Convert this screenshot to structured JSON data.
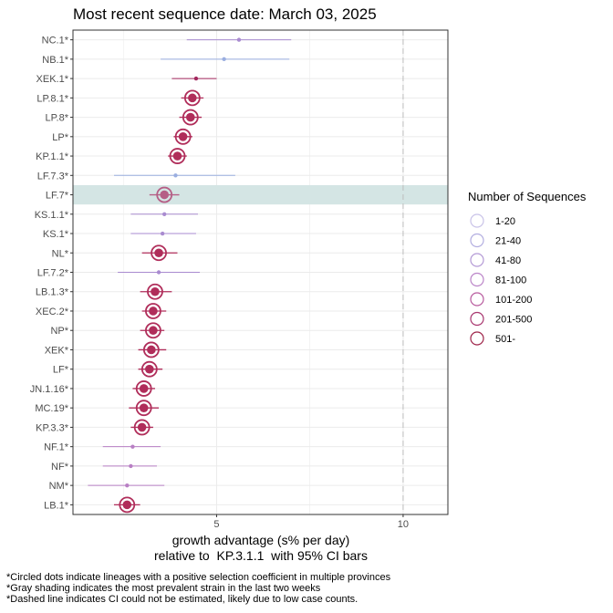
{
  "chart_data": {
    "type": "scatter",
    "title": "Most recent sequence date: March 03, 2025",
    "xlabel_line1": "growth advantage (s% per day)",
    "xlabel_line2": "relative to  KP.3.1.1  with 95% CI bars",
    "x_ticks": [
      5,
      10
    ],
    "xlim": [
      1.15,
      11.2
    ],
    "dashed_line_x": 10,
    "highlighted_lineage": "LF.7*",
    "lineages": [
      {
        "name": "NC.1*",
        "est": 5.6,
        "lo": 4.2,
        "hi": 7.0,
        "circled": false,
        "color": "#a98bd0"
      },
      {
        "name": "NB.1*",
        "est": 5.2,
        "lo": 3.5,
        "hi": 6.95,
        "circled": false,
        "color": "#9aaee0"
      },
      {
        "name": "XEK.1*",
        "est": 4.45,
        "lo": 3.8,
        "hi": 5.0,
        "circled": false,
        "color": "#a3285e"
      },
      {
        "name": "LP.8.1*",
        "est": 4.35,
        "lo": 4.05,
        "hi": 4.65,
        "circled": true,
        "color": "#b02d5a"
      },
      {
        "name": "LP.8*",
        "est": 4.3,
        "lo": 4.0,
        "hi": 4.6,
        "circled": true,
        "color": "#b02d5a"
      },
      {
        "name": "LP*",
        "est": 4.1,
        "lo": 3.85,
        "hi": 4.35,
        "circled": true,
        "color": "#b02d5a"
      },
      {
        "name": "KP.1.1*",
        "est": 3.95,
        "lo": 3.7,
        "hi": 4.2,
        "circled": true,
        "color": "#b02d5a"
      },
      {
        "name": "LF.7.3*",
        "est": 3.9,
        "lo": 2.25,
        "hi": 5.5,
        "circled": false,
        "color": "#9aaee0"
      },
      {
        "name": "LF.7*",
        "est": 3.6,
        "lo": 3.2,
        "hi": 4.0,
        "circled": true,
        "color": "#b55f86"
      },
      {
        "name": "KS.1.1*",
        "est": 3.6,
        "lo": 2.7,
        "hi": 4.5,
        "circled": false,
        "color": "#a98bd0"
      },
      {
        "name": "KS.1*",
        "est": 3.55,
        "lo": 2.7,
        "hi": 4.45,
        "circled": false,
        "color": "#a98bd0"
      },
      {
        "name": "NL*",
        "est": 3.45,
        "lo": 3.0,
        "hi": 3.95,
        "circled": true,
        "color": "#b02d5a"
      },
      {
        "name": "LF.7.2*",
        "est": 3.45,
        "lo": 2.35,
        "hi": 4.55,
        "circled": false,
        "color": "#a98bd0"
      },
      {
        "name": "LB.1.3*",
        "est": 3.35,
        "lo": 2.95,
        "hi": 3.8,
        "circled": true,
        "color": "#b02d5a"
      },
      {
        "name": "XEC.2*",
        "est": 3.3,
        "lo": 3.0,
        "hi": 3.65,
        "circled": true,
        "color": "#b02d5a"
      },
      {
        "name": "NP*",
        "est": 3.3,
        "lo": 2.95,
        "hi": 3.6,
        "circled": true,
        "color": "#b02d5a"
      },
      {
        "name": "XEK*",
        "est": 3.25,
        "lo": 2.9,
        "hi": 3.65,
        "circled": true,
        "color": "#b02d5a"
      },
      {
        "name": "LF*",
        "est": 3.2,
        "lo": 2.9,
        "hi": 3.55,
        "circled": true,
        "color": "#b02d5a"
      },
      {
        "name": "JN.1.16*",
        "est": 3.05,
        "lo": 2.75,
        "hi": 3.35,
        "circled": true,
        "color": "#b02d5a"
      },
      {
        "name": "MC.19*",
        "est": 3.05,
        "lo": 2.65,
        "hi": 3.45,
        "circled": true,
        "color": "#b02d5a"
      },
      {
        "name": "KP.3.3*",
        "est": 3.0,
        "lo": 2.7,
        "hi": 3.3,
        "circled": true,
        "color": "#b02d5a"
      },
      {
        "name": "NF.1*",
        "est": 2.75,
        "lo": 1.95,
        "hi": 3.5,
        "circled": false,
        "color": "#b87fc4"
      },
      {
        "name": "NF*",
        "est": 2.7,
        "lo": 1.95,
        "hi": 3.4,
        "circled": false,
        "color": "#b87fc4"
      },
      {
        "name": "NM*",
        "est": 2.6,
        "lo": 1.55,
        "hi": 3.6,
        "circled": false,
        "color": "#b87fc4"
      },
      {
        "name": "LB.1*",
        "est": 2.6,
        "lo": 2.25,
        "hi": 2.95,
        "circled": true,
        "color": "#b02d5a"
      }
    ],
    "legend": {
      "title": "Number of Sequences",
      "placement": "right",
      "entries": [
        {
          "label": "1-20",
          "color": "#c9c3e8"
        },
        {
          "label": "21-40",
          "color": "#b3aee0"
        },
        {
          "label": "41-80",
          "color": "#b49ad6"
        },
        {
          "label": "81-100",
          "color": "#bb85c8"
        },
        {
          "label": "101-200",
          "color": "#b85b9e"
        },
        {
          "label": "201-500",
          "color": "#a8366f"
        },
        {
          "label": "501-",
          "color": "#9e2449"
        }
      ]
    },
    "footnotes": [
      "*Circled dots indicate lineages with a positive selection coefficient in multiple provinces",
      "*Gray shading indicates the most prevalent strain in the last two weeks",
      "*Dashed line indicates CI could not be estimated, likely due to low case counts."
    ]
  }
}
